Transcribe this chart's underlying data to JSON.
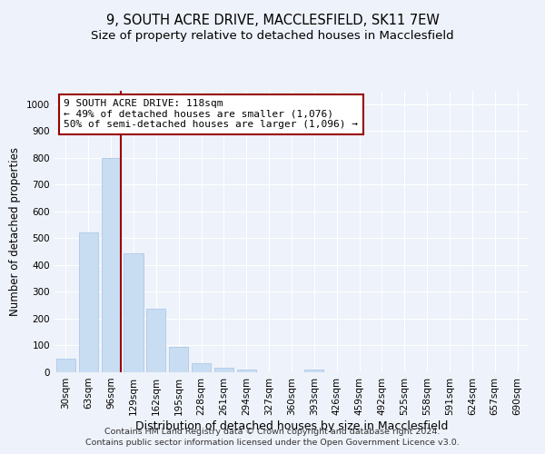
{
  "title": "9, SOUTH ACRE DRIVE, MACCLESFIELD, SK11 7EW",
  "subtitle": "Size of property relative to detached houses in Macclesfield",
  "xlabel": "Distribution of detached houses by size in Macclesfield",
  "ylabel": "Number of detached properties",
  "footnote1": "Contains HM Land Registry data © Crown copyright and database right 2024.",
  "footnote2": "Contains public sector information licensed under the Open Government Licence v3.0.",
  "categories": [
    "30sqm",
    "63sqm",
    "96sqm",
    "129sqm",
    "162sqm",
    "195sqm",
    "228sqm",
    "261sqm",
    "294sqm",
    "327sqm",
    "360sqm",
    "393sqm",
    "426sqm",
    "459sqm",
    "492sqm",
    "525sqm",
    "558sqm",
    "591sqm",
    "624sqm",
    "657sqm",
    "690sqm"
  ],
  "values": [
    50,
    520,
    800,
    445,
    238,
    95,
    33,
    18,
    10,
    0,
    0,
    10,
    0,
    0,
    0,
    0,
    0,
    0,
    0,
    0,
    0
  ],
  "bar_color": "#c9ddf2",
  "bar_edge_color": "#adc8e8",
  "ylim": [
    0,
    1050
  ],
  "yticks": [
    0,
    100,
    200,
    300,
    400,
    500,
    600,
    700,
    800,
    900,
    1000
  ],
  "vline_x": 2.42,
  "vline_color": "#990000",
  "annotation_text": "9 SOUTH ACRE DRIVE: 118sqm\n← 49% of detached houses are smaller (1,076)\n50% of semi-detached houses are larger (1,096) →",
  "background_color": "#eef2fa",
  "grid_color": "#ffffff",
  "title_fontsize": 10.5,
  "subtitle_fontsize": 9.5,
  "xlabel_fontsize": 9,
  "ylabel_fontsize": 8.5,
  "tick_fontsize": 7.5,
  "annotation_fontsize": 8,
  "footnote_fontsize": 6.8
}
